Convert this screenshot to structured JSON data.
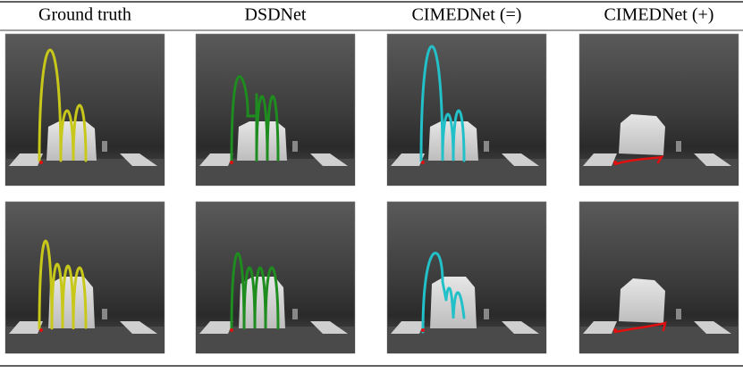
{
  "table": {
    "columns": [
      "Ground truth",
      "DSDNet",
      "CIMEDNet (=)",
      "CIMEDNet (+)"
    ]
  }
}
